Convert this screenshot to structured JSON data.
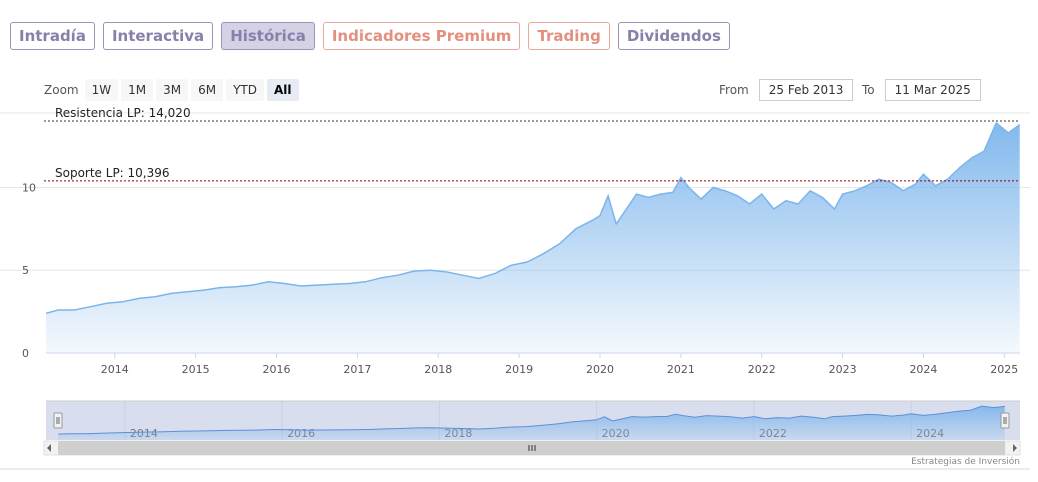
{
  "tabs": [
    {
      "label": "Intradía",
      "style": "purple"
    },
    {
      "label": "Interactiva",
      "style": "purple"
    },
    {
      "label": "Histórica",
      "style": "purple",
      "active": true
    },
    {
      "label": "Indicadores Premium",
      "style": "red"
    },
    {
      "label": "Trading",
      "style": "red"
    },
    {
      "label": "Dividendos",
      "style": "purple"
    }
  ],
  "zoom": {
    "label": "Zoom",
    "buttons": [
      "1W",
      "1M",
      "3M",
      "6M",
      "YTD",
      "All"
    ],
    "active": "All"
  },
  "range": {
    "from_label": "From",
    "from_value": "25 Feb 2013",
    "to_label": "To",
    "to_value": "11 Mar 2025"
  },
  "credits": "Estrategias de Inversión",
  "colors": {
    "line": "#7cb5ec",
    "area_top": "#7cb5ec",
    "resistance_line": "#333333",
    "support_line": "#8b0000",
    "navigator_mask": "#b8c3e0"
  },
  "chart_data": {
    "type": "area",
    "title": "",
    "xlabel": "",
    "ylabel": "",
    "xlim": [
      "2013-02-25",
      "2025-03-11"
    ],
    "ylim": [
      0,
      14.5
    ],
    "y_ticks": [
      0,
      5,
      10
    ],
    "x_ticks": [
      "2014",
      "2015",
      "2016",
      "2017",
      "2018",
      "2019",
      "2020",
      "2021",
      "2022",
      "2023",
      "2024",
      "2025"
    ],
    "navigator_x_ticks": [
      "2014",
      "2016",
      "2018",
      "2020",
      "2022",
      "2024"
    ],
    "grid": true,
    "annotations": [
      {
        "label": "Resistencia LP: 14,020",
        "value": 14.02
      },
      {
        "label": "Soporte LP: 10,396",
        "value": 10.396
      }
    ],
    "series": [
      {
        "x": [
          2013.15,
          2013.3,
          2013.5,
          2013.7,
          2013.9,
          2014.1,
          2014.3,
          2014.5,
          2014.7,
          2014.9,
          2015.1,
          2015.3,
          2015.5,
          2015.7,
          2015.9,
          2016.1,
          2016.3,
          2016.5,
          2016.7,
          2016.9,
          2017.1,
          2017.3,
          2017.5,
          2017.7,
          2017.9,
          2018.1,
          2018.3,
          2018.5,
          2018.7,
          2018.9,
          2019.1,
          2019.3,
          2019.5,
          2019.7,
          2019.9,
          2020.0,
          2020.1,
          2020.2,
          2020.3,
          2020.45,
          2020.6,
          2020.75,
          2020.9,
          2021.0,
          2021.1,
          2021.25,
          2021.4,
          2021.55,
          2021.7,
          2021.85,
          2022.0,
          2022.15,
          2022.3,
          2022.45,
          2022.6,
          2022.75,
          2022.9,
          2023.0,
          2023.15,
          2023.3,
          2023.45,
          2023.6,
          2023.75,
          2023.9,
          2024.0,
          2024.15,
          2024.3,
          2024.45,
          2024.6,
          2024.75,
          2024.9,
          2025.05,
          2025.19
        ],
        "y": [
          2.4,
          2.6,
          2.6,
          2.8,
          3.0,
          3.1,
          3.3,
          3.4,
          3.6,
          3.7,
          3.8,
          3.95,
          4.0,
          4.1,
          4.3,
          4.2,
          4.05,
          4.1,
          4.15,
          4.2,
          4.3,
          4.55,
          4.7,
          4.95,
          5.0,
          4.9,
          4.7,
          4.5,
          4.8,
          5.3,
          5.5,
          6.0,
          6.6,
          7.5,
          8.0,
          8.3,
          9.5,
          7.8,
          8.5,
          9.6,
          9.4,
          9.6,
          9.7,
          10.6,
          10.0,
          9.3,
          10.0,
          9.8,
          9.5,
          9.0,
          9.6,
          8.7,
          9.2,
          9.0,
          9.8,
          9.4,
          8.7,
          9.6,
          9.8,
          10.1,
          10.5,
          10.3,
          9.8,
          10.2,
          10.8,
          10.1,
          10.5,
          11.2,
          11.8,
          12.2,
          13.9,
          13.3,
          13.8
        ]
      }
    ]
  }
}
